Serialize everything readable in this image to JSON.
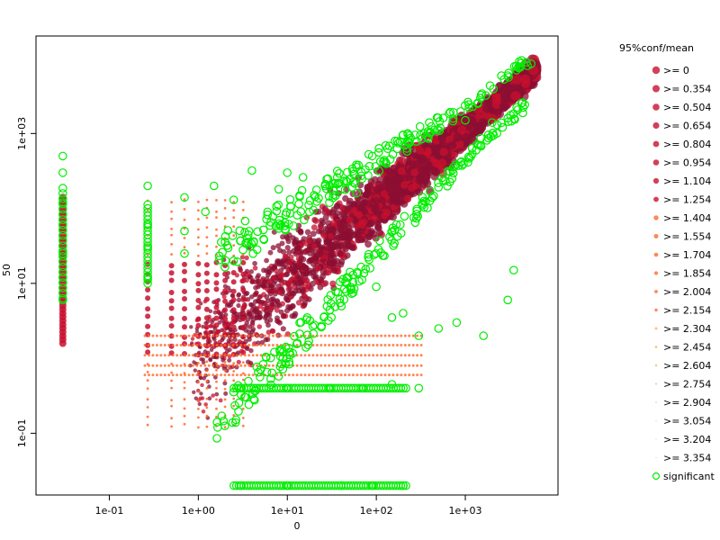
{
  "chart_data": {
    "type": "scatter",
    "title": "",
    "xlabel": "0",
    "ylabel": "50",
    "x_scale": "log",
    "y_scale": "log",
    "xlim": [
      0.015,
      11000
    ],
    "ylim": [
      0.015,
      20000
    ],
    "x_ticks": [
      {
        "value": 0.1,
        "label": "1e-01"
      },
      {
        "value": 1,
        "label": "1e+00"
      },
      {
        "value": 10,
        "label": "1e+01"
      },
      {
        "value": 100,
        "label": "1e+02"
      },
      {
        "value": 1000,
        "label": "1e+03"
      }
    ],
    "y_ticks": [
      {
        "value": 0.1,
        "label": "1e-01"
      },
      {
        "value": 10,
        "label": "1e+01"
      },
      {
        "value": 1000,
        "label": "1e+03"
      }
    ],
    "legend": {
      "title": "95%conf/mean",
      "position": "right",
      "entries": [
        ">= 0",
        ">= 0.354",
        ">= 0.504",
        ">= 0.654",
        ">= 0.804",
        ">= 0.954",
        ">= 1.104",
        ">= 1.254",
        ">= 1.404",
        ">= 1.554",
        ">= 1.704",
        ">= 1.854",
        ">= 2.004",
        ">= 2.154",
        ">= 2.304",
        ">= 2.454",
        ">= 2.604",
        ">= 2.754",
        ">= 2.904",
        ">= 3.054",
        ">= 3.204",
        ">= 3.354"
      ],
      "significant_label": "significant"
    },
    "colors": {
      "dense": "#8b0f33",
      "mid": "#c8102e",
      "light": "#ff6a2a",
      "faint": "#ffb35c",
      "significant": "#00ee00"
    },
    "series": [
      {
        "name": "significant",
        "marker": "open-circle",
        "approx_points": [
          [
            0.03,
            500
          ],
          [
            0.03,
            300
          ],
          [
            0.03,
            120
          ],
          [
            0.03,
            60
          ],
          [
            0.03,
            25
          ],
          [
            0.03,
            12
          ],
          [
            0.03,
            6
          ],
          [
            0.27,
            200
          ],
          [
            0.27,
            60
          ],
          [
            0.27,
            30
          ],
          [
            0.27,
            12
          ],
          [
            0.7,
            140
          ],
          [
            0.7,
            50
          ],
          [
            0.7,
            25
          ],
          [
            1.2,
            90
          ],
          [
            1.5,
            200
          ],
          [
            2.5,
            130
          ],
          [
            4,
            320
          ],
          [
            6,
            90
          ],
          [
            8,
            180
          ],
          [
            10,
            300
          ],
          [
            15,
            260
          ],
          [
            20,
            150
          ],
          [
            30,
            200
          ],
          [
            40,
            180
          ],
          [
            60,
            160
          ],
          [
            90,
            500
          ],
          [
            120,
            420
          ],
          [
            200,
            960
          ],
          [
            1000,
            1500
          ],
          [
            2000,
            1400
          ],
          [
            3000,
            1600
          ],
          [
            5000,
            8000
          ],
          [
            5500,
            8500
          ],
          [
            3500,
            15
          ],
          [
            3000,
            6
          ],
          [
            1600,
            2
          ],
          [
            100,
            9
          ],
          [
            200,
            4
          ],
          [
            150,
            3.5
          ],
          [
            300,
            2
          ],
          [
            500,
            2.5
          ],
          [
            800,
            3
          ]
        ]
      },
      {
        "name": "significant",
        "marker": "open-circle",
        "approx_points": [
          [
            3,
            0.4
          ],
          [
            10,
            0.4
          ],
          [
            30,
            0.4
          ],
          [
            70,
            0.4
          ],
          [
            150,
            0.45
          ],
          [
            300,
            0.4
          ],
          [
            3,
            0.02
          ],
          [
            10,
            0.02
          ],
          [
            40,
            0.02
          ],
          [
            90,
            0.02
          ],
          [
            200,
            0.02
          ]
        ]
      }
    ]
  }
}
